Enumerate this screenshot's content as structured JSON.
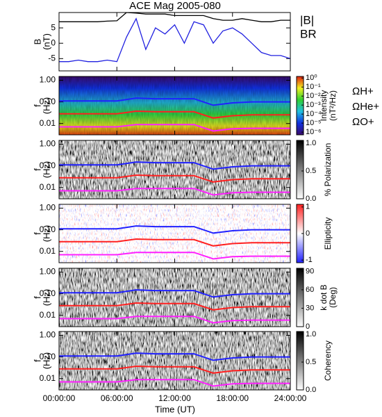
{
  "figure": {
    "title": "ACE Mag 2005-080",
    "xlabel": "Time (UT)",
    "xlim": [
      0,
      24
    ],
    "xticks": [
      {
        "value": 0,
        "label": "00:00:00"
      },
      {
        "value": 6,
        "label": "06:00:00"
      },
      {
        "value": 12,
        "label": "12:00:00"
      },
      {
        "value": 18,
        "label": "18:00:00"
      },
      {
        "value": 24,
        "label": "24:00:00"
      }
    ],
    "x": [
      0,
      2,
      4,
      6,
      8,
      10,
      12,
      14,
      16,
      18,
      20,
      22,
      24
    ]
  },
  "chart_data": [
    {
      "type": "line",
      "ylabel": [
        "B",
        "(nT)"
      ],
      "ylim": [
        -9,
        10
      ],
      "yticks": [
        -5,
        0,
        5
      ],
      "log": false,
      "x": [
        0,
        1,
        2,
        3,
        4,
        5,
        6,
        7,
        8,
        9,
        10,
        11,
        12,
        13,
        14,
        15,
        16,
        17,
        18,
        19,
        20,
        21,
        22,
        23,
        24
      ],
      "series": [
        {
          "name": "|B|",
          "color": "#000000",
          "values": [
            7,
            7,
            7,
            7,
            7,
            7.2,
            7.3,
            10,
            9.8,
            9.5,
            9.5,
            9.5,
            9,
            9,
            9,
            9,
            8,
            7.5,
            7.5,
            8,
            7.5,
            7,
            7,
            7.5,
            7.5
          ]
        },
        {
          "name": "BR",
          "color": "#2020e0",
          "values": [
            -6,
            -6,
            -5.5,
            -6,
            -6,
            -5.5,
            -6,
            2,
            8,
            -2,
            5,
            3,
            6,
            0,
            7,
            6,
            0,
            4,
            5,
            3,
            0,
            -3,
            -4,
            -4,
            -5
          ]
        }
      ]
    },
    {
      "type": "spectrogram",
      "ylabel": [
        "f",
        "(Hz)"
      ],
      "ylim": [
        0.003,
        1.5
      ],
      "log": true,
      "yticks": [
        0.01,
        {
          "value": 0.1,
          "label": "0.10"
        },
        {
          "value": 1,
          "label": "1.00"
        }
      ],
      "colormap": "rainbow",
      "colorbar": {
        "label": [
          "Intensity",
          "(nT²/Hz)"
        ],
        "lim": [
          5e-07,
          1.5
        ],
        "log": true,
        "colors": [
          "#3a0a6a",
          "#1030e0",
          "#20c0e0",
          "#30d030",
          "#f0f020",
          "#e02010"
        ],
        "ticks": [
          {
            "value": 1,
            "label": "10⁰"
          },
          {
            "value": 0.1,
            "label": "10⁻¹"
          },
          {
            "value": 0.01,
            "label": "10⁻²"
          },
          {
            "value": 0.001,
            "label": "10⁻³"
          },
          {
            "value": 0.0001,
            "label": "10⁻⁴"
          },
          {
            "value": 1e-05,
            "label": "10⁻⁵"
          },
          {
            "value": 1e-06,
            "label": "10⁻⁶"
          }
        ]
      },
      "series": [
        {
          "name": "ΩH+",
          "color": "#2020ff",
          "values": [
            0.11,
            0.11,
            0.11,
            0.11,
            0.15,
            0.14,
            0.14,
            0.14,
            0.07,
            0.09,
            0.1,
            0.1,
            0.1
          ]
        },
        {
          "name": "ΩHe+",
          "color": "#ff2020",
          "values": [
            0.028,
            0.028,
            0.028,
            0.028,
            0.037,
            0.035,
            0.035,
            0.035,
            0.018,
            0.023,
            0.025,
            0.025,
            0.025
          ]
        },
        {
          "name": "ΩO+",
          "color": "#ff20ff",
          "values": [
            0.007,
            0.007,
            0.007,
            0.007,
            0.009,
            0.009,
            0.009,
            0.009,
            0.0045,
            0.0057,
            0.006,
            0.006,
            0.006
          ]
        }
      ]
    },
    {
      "type": "spectrogram",
      "ylabel": [
        "f",
        "(Hz)"
      ],
      "ylim": [
        0.003,
        1.5
      ],
      "log": true,
      "yticks": [
        0.01,
        {
          "value": 0.1,
          "label": "0.10"
        },
        {
          "value": 1,
          "label": "1.00"
        }
      ],
      "colormap": "gray",
      "colorbar": {
        "label": [
          "% Polarization"
        ],
        "lim": [
          0,
          1.05
        ],
        "log": false,
        "colors": [
          "#ffffff",
          "#000000"
        ],
        "ticks": [
          {
            "value": 0,
            "label": "0.0"
          },
          0.5,
          {
            "value": 1,
            "label": "1.0"
          }
        ]
      },
      "series": [
        {
          "color": "#2020ff",
          "values": [
            0.11,
            0.11,
            0.11,
            0.11,
            0.15,
            0.14,
            0.14,
            0.14,
            0.07,
            0.09,
            0.1,
            0.1,
            0.1
          ]
        },
        {
          "color": "#ff2020",
          "values": [
            0.028,
            0.028,
            0.028,
            0.028,
            0.037,
            0.035,
            0.035,
            0.035,
            0.018,
            0.023,
            0.025,
            0.025,
            0.025
          ]
        },
        {
          "color": "#ff20ff",
          "values": [
            0.007,
            0.007,
            0.007,
            0.007,
            0.009,
            0.009,
            0.009,
            0.009,
            0.0045,
            0.0057,
            0.006,
            0.006,
            0.006
          ]
        }
      ]
    },
    {
      "type": "spectrogram",
      "ylabel": [
        "f",
        "(Hz)"
      ],
      "ylim": [
        0.003,
        1.5
      ],
      "log": true,
      "yticks": [
        0.01,
        {
          "value": 0.1,
          "label": "0.10"
        },
        {
          "value": 1,
          "label": "1.00"
        }
      ],
      "colormap": "bwr",
      "colorbar": {
        "label": [
          "Ellipticity"
        ],
        "lim": [
          -1.1,
          1.1
        ],
        "log": false,
        "colors": [
          "#2020ff",
          "#ffffff",
          "#ff2020"
        ],
        "ticks": [
          -1,
          0,
          1
        ]
      },
      "series": [
        {
          "color": "#2020ff",
          "values": [
            0.11,
            0.11,
            0.11,
            0.11,
            0.15,
            0.14,
            0.14,
            0.14,
            0.07,
            0.09,
            0.1,
            0.1,
            0.1
          ]
        },
        {
          "color": "#ff2020",
          "values": [
            0.028,
            0.028,
            0.028,
            0.028,
            0.037,
            0.035,
            0.035,
            0.035,
            0.018,
            0.023,
            0.025,
            0.025,
            0.025
          ]
        },
        {
          "color": "#ff20ff",
          "values": [
            0.007,
            0.007,
            0.007,
            0.007,
            0.009,
            0.009,
            0.009,
            0.009,
            0.0045,
            0.0057,
            0.006,
            0.006,
            0.006
          ]
        }
      ]
    },
    {
      "type": "spectrogram",
      "ylabel": [
        "f",
        "(Hz)"
      ],
      "ylim": [
        0.003,
        1.5
      ],
      "log": true,
      "yticks": [
        0.01,
        {
          "value": 0.1,
          "label": "0.10"
        },
        {
          "value": 1,
          "label": "1.00"
        }
      ],
      "colormap": "gray",
      "colorbar": {
        "label": [
          "k dot B",
          "(Deg)"
        ],
        "lim": [
          0,
          95
        ],
        "log": false,
        "colors": [
          "#ffffff",
          "#000000"
        ],
        "ticks": [
          0,
          30,
          60,
          90
        ]
      },
      "series": [
        {
          "color": "#2020ff",
          "values": [
            0.11,
            0.11,
            0.11,
            0.11,
            0.15,
            0.14,
            0.14,
            0.14,
            0.07,
            0.09,
            0.1,
            0.1,
            0.1
          ]
        },
        {
          "color": "#ff2020",
          "values": [
            0.028,
            0.028,
            0.028,
            0.028,
            0.037,
            0.035,
            0.035,
            0.035,
            0.018,
            0.023,
            0.025,
            0.025,
            0.025
          ]
        },
        {
          "color": "#ff20ff",
          "values": [
            0.007,
            0.007,
            0.007,
            0.007,
            0.009,
            0.009,
            0.009,
            0.009,
            0.0045,
            0.0057,
            0.006,
            0.006,
            0.006
          ]
        }
      ]
    },
    {
      "type": "spectrogram",
      "ylabel": [
        "f",
        "(Hz)"
      ],
      "ylim": [
        0.003,
        1.5
      ],
      "log": true,
      "yticks": [
        0.01,
        {
          "value": 0.1,
          "label": "0.10"
        },
        {
          "value": 1,
          "label": "1.00"
        }
      ],
      "colormap": "gray",
      "colorbar": {
        "label": [
          "Coherency"
        ],
        "lim": [
          0,
          1.05
        ],
        "log": false,
        "colors": [
          "#ffffff",
          "#000000"
        ],
        "ticks": [
          {
            "value": 0,
            "label": "0.0"
          },
          0.5,
          {
            "value": 1,
            "label": "1.0"
          }
        ]
      },
      "series": [
        {
          "color": "#2020ff",
          "values": [
            0.11,
            0.11,
            0.11,
            0.11,
            0.15,
            0.14,
            0.14,
            0.14,
            0.07,
            0.09,
            0.1,
            0.1,
            0.1
          ]
        },
        {
          "color": "#ff2020",
          "values": [
            0.028,
            0.028,
            0.028,
            0.028,
            0.037,
            0.035,
            0.035,
            0.035,
            0.018,
            0.023,
            0.025,
            0.025,
            0.025
          ]
        },
        {
          "color": "#ff20ff",
          "values": [
            0.007,
            0.007,
            0.007,
            0.007,
            0.009,
            0.009,
            0.009,
            0.009,
            0.0045,
            0.0057,
            0.006,
            0.006,
            0.006
          ]
        }
      ]
    }
  ]
}
